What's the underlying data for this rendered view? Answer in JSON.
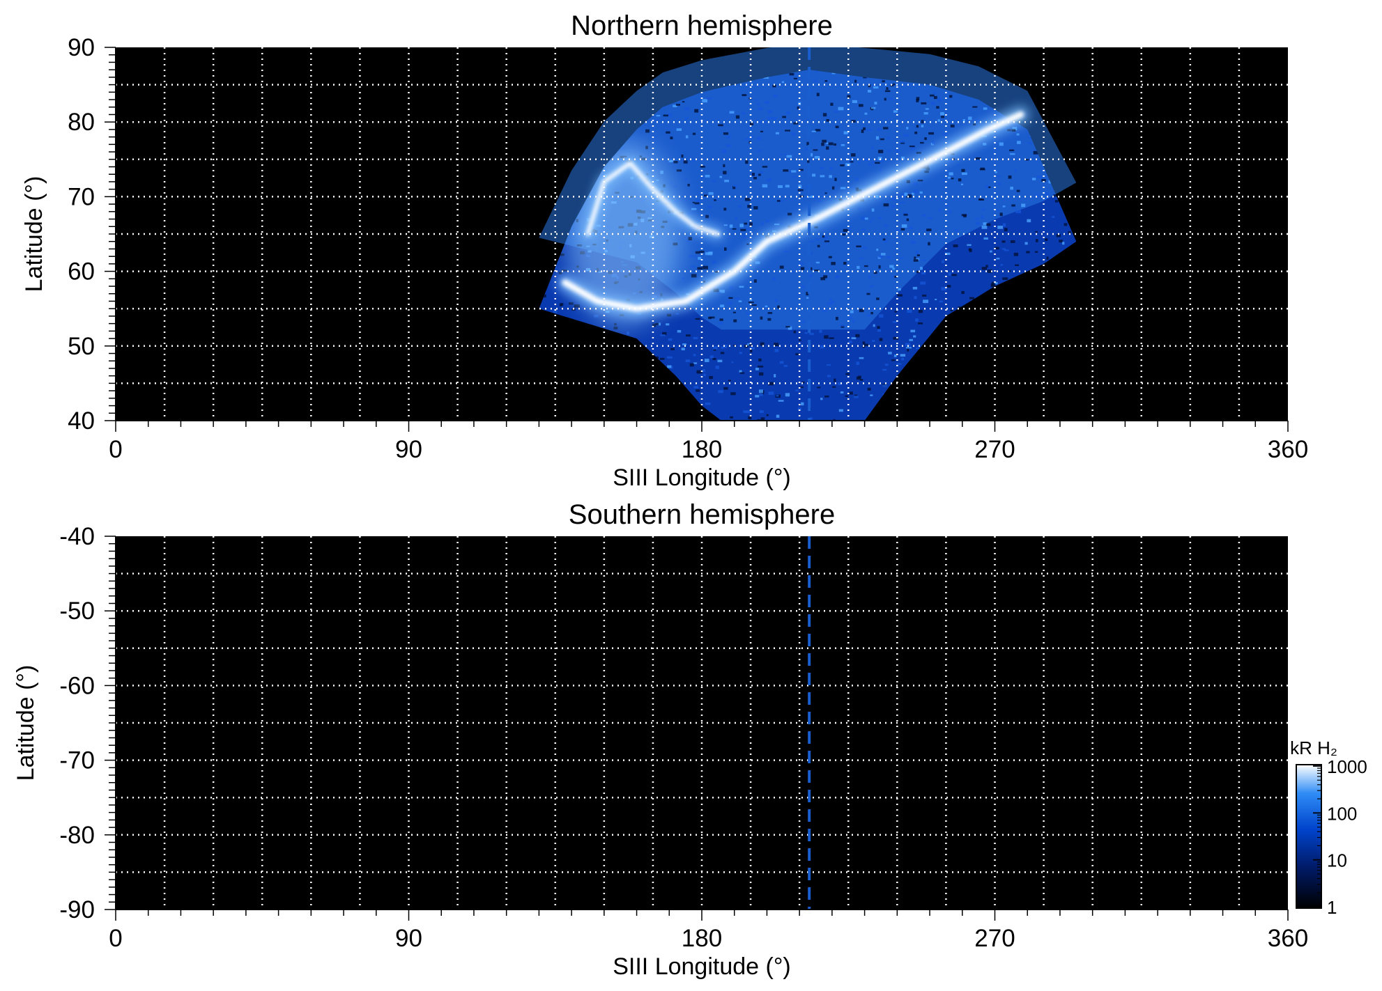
{
  "chart_data": [
    {
      "type": "heatmap",
      "title": "Northern hemisphere",
      "xlabel": "SIII Longitude (°)",
      "ylabel": "Latitude (°)",
      "xlim": [
        0,
        360
      ],
      "ylim": [
        40,
        90
      ],
      "x_ticks": [
        0,
        90,
        180,
        270,
        360
      ],
      "y_ticks": [
        40,
        50,
        60,
        70,
        80,
        90
      ],
      "grid": true,
      "background_color": "#000000",
      "marker_longitude": 213,
      "marker_color": "#1a5fd0",
      "coverage_top": {
        "lon": [
          130,
          140,
          150,
          160,
          168,
          180,
          200,
          213,
          230,
          250,
          265,
          280,
          295
        ],
        "lat": [
          55,
          66,
          74,
          79,
          82,
          84,
          86,
          87,
          86,
          85,
          83,
          79,
          64
        ]
      },
      "coverage_bottom": {
        "lon": [
          130,
          145,
          160,
          172,
          180,
          186,
          230,
          240,
          255,
          270,
          285,
          295
        ],
        "lat": [
          55,
          53,
          51,
          46,
          42,
          40,
          40,
          46,
          54,
          58,
          61,
          64
        ]
      },
      "main_oval": {
        "lon": [
          138,
          148,
          160,
          175,
          190,
          200,
          215,
          235,
          255,
          268,
          278
        ],
        "lat": [
          58.5,
          56,
          55,
          56,
          60,
          64,
          67,
          71.5,
          76,
          79,
          81
        ]
      },
      "polar_arc": {
        "lon": [
          145,
          150,
          158,
          165,
          172,
          178,
          185
        ],
        "lat": [
          65,
          72,
          74.5,
          71,
          68,
          66,
          65
        ]
      },
      "diffuse_region": {
        "lon": [
          142,
          170
        ],
        "lat": [
          55,
          75
        ]
      }
    },
    {
      "type": "heatmap",
      "title": "Southern hemisphere",
      "xlabel": "SIII Longitude (°)",
      "ylabel": "Latitude (°)",
      "xlim": [
        0,
        360
      ],
      "ylim": [
        -90,
        -40
      ],
      "x_ticks": [
        0,
        90,
        180,
        270,
        360
      ],
      "y_ticks": [
        -40,
        -50,
        -60,
        -70,
        -80,
        -90
      ],
      "grid": true,
      "background_color": "#000000",
      "marker_longitude": 213,
      "marker_color": "#1a5fd0"
    }
  ],
  "colorbar": {
    "label": "kR H₂",
    "scale": "log",
    "range": [
      1,
      1000
    ],
    "ticks": [
      1,
      10,
      100,
      1000
    ],
    "colors": [
      "#000000",
      "#001a66",
      "#0044cc",
      "#2f8cf5",
      "#ffffff"
    ]
  }
}
